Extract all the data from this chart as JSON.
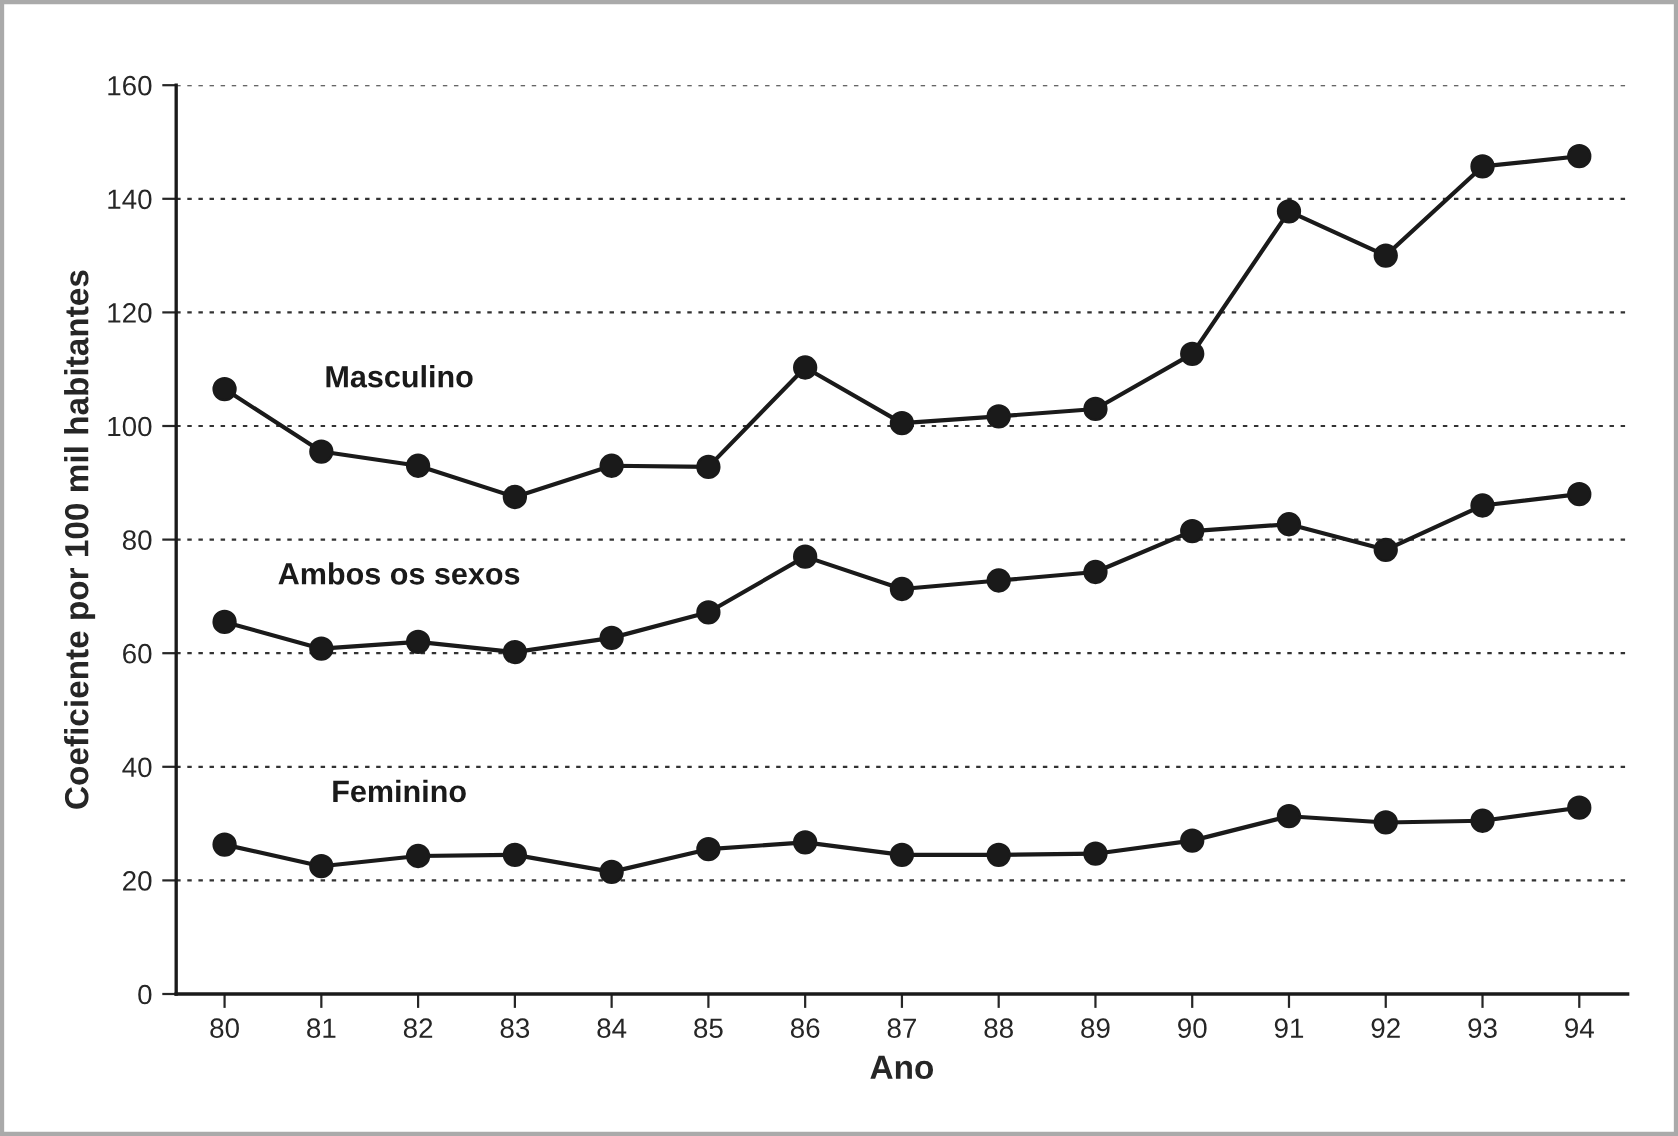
{
  "chart_data": {
    "type": "line",
    "xlabel": "Ano",
    "ylabel": "Coeficiente por 100 mil habitantes",
    "categories": [
      "80",
      "81",
      "82",
      "83",
      "84",
      "85",
      "86",
      "87",
      "88",
      "89",
      "90",
      "91",
      "92",
      "93",
      "94"
    ],
    "series": [
      {
        "name": "Masculino",
        "color": "#1a1a1a",
        "values": [
          106.5,
          95.5,
          93,
          87.5,
          93,
          92.8,
          110.3,
          100.5,
          101.7,
          103,
          112.7,
          137.8,
          130,
          145.7,
          147.5
        ]
      },
      {
        "name": "Ambos os sexos",
        "color": "#1a1a1a",
        "values": [
          65.5,
          60.8,
          62,
          60.2,
          62.7,
          67.2,
          77,
          71.3,
          72.8,
          74.3,
          81.5,
          82.7,
          78.2,
          86,
          88
        ]
      },
      {
        "name": "Feminino",
        "color": "#1a1a1a",
        "values": [
          26.3,
          22.5,
          24.3,
          24.5,
          21.5,
          25.5,
          26.7,
          24.5,
          24.5,
          24.7,
          27,
          31.3,
          30.2,
          30.5,
          32.8
        ]
      }
    ],
    "ylim": [
      0,
      160
    ],
    "yticks": [
      0,
      20,
      40,
      60,
      80,
      100,
      120,
      140,
      160
    ],
    "grid": "y",
    "marker": "circle",
    "line_style": "solid",
    "legend": false
  }
}
